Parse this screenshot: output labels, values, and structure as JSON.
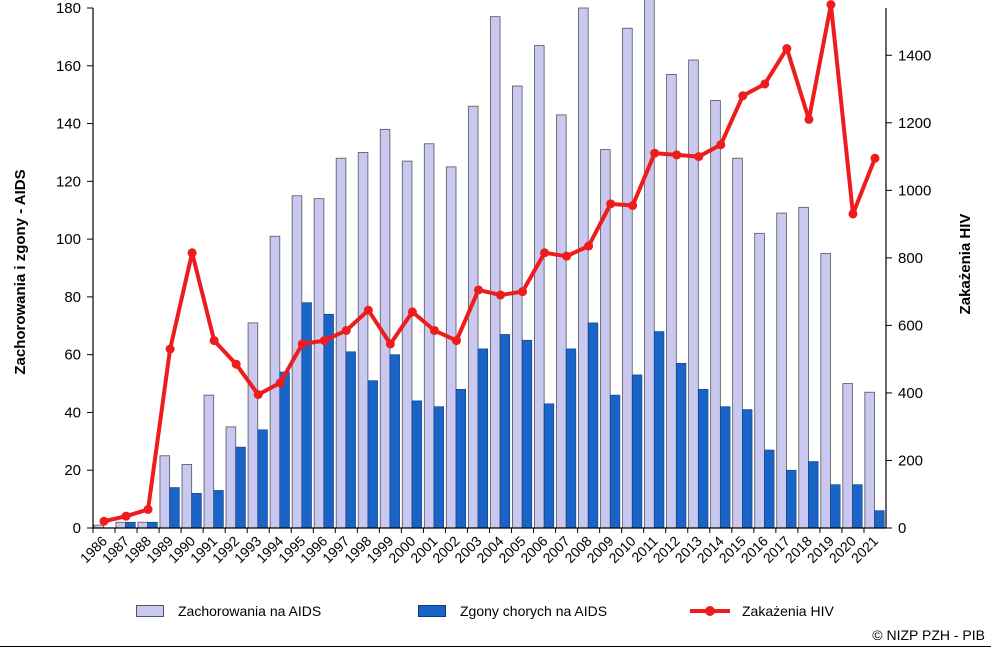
{
  "chart_data": {
    "type": "bar",
    "categories": [
      "1986",
      "1987",
      "1988",
      "1989",
      "1990",
      "1991",
      "1992",
      "1993",
      "1994",
      "1995",
      "1996",
      "1997",
      "1998",
      "1999",
      "2000",
      "2001",
      "2002",
      "2003",
      "2004",
      "2005",
      "2006",
      "2007",
      "2008",
      "2009",
      "2010",
      "2011",
      "2012",
      "2013",
      "2014",
      "2015",
      "2016",
      "2017",
      "2018",
      "2019",
      "2020",
      "2021"
    ],
    "series": [
      {
        "name": "Zachorowania na AIDS",
        "type": "bar",
        "axis": "left",
        "color": "#c8c8f0",
        "values": [
          1,
          2,
          2,
          25,
          22,
          46,
          35,
          71,
          101,
          115,
          114,
          128,
          130,
          138,
          127,
          133,
          125,
          146,
          177,
          153,
          167,
          143,
          180,
          131,
          173,
          184,
          157,
          162,
          148,
          128,
          102,
          109,
          111,
          95,
          50,
          47
        ]
      },
      {
        "name": "Zgony chorych na AIDS",
        "type": "bar",
        "axis": "left",
        "color": "#1a64c8",
        "values": [
          0,
          2,
          2,
          14,
          12,
          13,
          28,
          34,
          54,
          78,
          74,
          61,
          51,
          60,
          44,
          42,
          48,
          62,
          67,
          65,
          43,
          62,
          71,
          46,
          53,
          68,
          57,
          48,
          42,
          41,
          27,
          20,
          23,
          15,
          15,
          6
        ]
      },
      {
        "name": "Zakażenia HIV",
        "type": "line",
        "axis": "right",
        "color": "#ee1c1c",
        "values": [
          20,
          35,
          55,
          530,
          815,
          555,
          485,
          395,
          430,
          545,
          555,
          585,
          645,
          545,
          640,
          585,
          555,
          705,
          690,
          700,
          815,
          805,
          835,
          960,
          955,
          1110,
          1105,
          1100,
          1135,
          1280,
          1315,
          1420,
          1210,
          1550,
          930,
          1095
        ]
      }
    ],
    "ylabel": "Zachorowania i zgony - AIDS",
    "y2label": "Zakażenia HIV",
    "ylim": [
      0,
      180
    ],
    "y2lim": [
      0,
      1540
    ],
    "yticks": [
      0,
      20,
      40,
      60,
      80,
      100,
      120,
      140,
      160,
      180
    ],
    "y2ticks": [
      0,
      200,
      400,
      600,
      800,
      1000,
      1200,
      1400
    ],
    "legend": "bottom",
    "grid": false
  },
  "footer": {
    "copyright": "© NIZP PZH - PIB"
  }
}
